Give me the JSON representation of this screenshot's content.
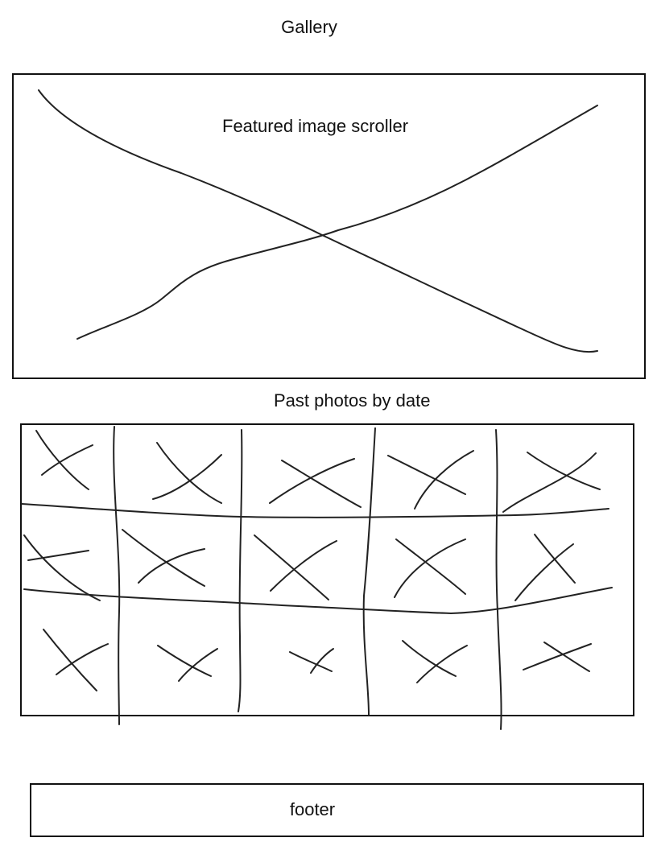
{
  "page": {
    "title": "Gallery"
  },
  "featured": {
    "label": "Featured image scroller"
  },
  "past_photos": {
    "heading": "Past photos by date",
    "rows": 3,
    "columns": 5
  },
  "footer": {
    "label": "footer"
  }
}
